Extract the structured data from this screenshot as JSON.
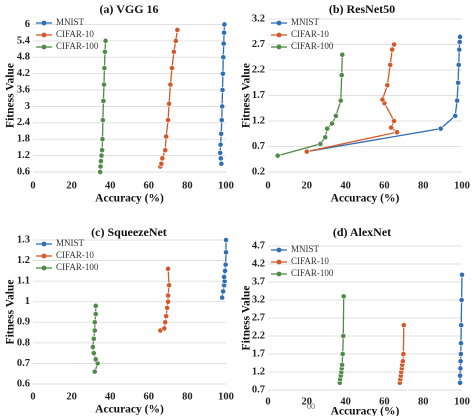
{
  "chart_data": [
    {
      "type": "line",
      "panel_label": "(a) VGG 16",
      "xlabel": "Accuracy (%)",
      "ylabel": "Fitness Value",
      "xlim": [
        0,
        100
      ],
      "ylim": [
        0.6,
        6.2
      ],
      "xticks": [
        0,
        20,
        40,
        60,
        80,
        100
      ],
      "xtick_labels": [
        "0",
        "20",
        "40",
        "60",
        "80",
        "100"
      ],
      "yticks": [
        0.6,
        1.2,
        1.8,
        2.4,
        3.0,
        3.6,
        4.2,
        4.8,
        5.4,
        6.0
      ],
      "ytick_labels": [
        "0.6",
        "1.2",
        "1.8",
        "2.4",
        "3",
        "3.6",
        "4.2",
        "4.8",
        "5.4",
        "6"
      ],
      "grid": "horizontal",
      "legend": "top-left",
      "series": [
        {
          "name": "MNIST",
          "color": "#2f6db5",
          "x": [
            97.6,
            97.3,
            97.0,
            97.2,
            97.5,
            97.8,
            98.0,
            98.2,
            98.4,
            98.6,
            98.8,
            99.0,
            99.2
          ],
          "y": [
            0.9,
            1.1,
            1.3,
            1.6,
            2.0,
            2.5,
            3.0,
            3.6,
            4.2,
            4.8,
            5.3,
            5.7,
            6.0
          ]
        },
        {
          "name": "CIFAR-10",
          "color": "#d4582a",
          "x": [
            66.0,
            66.5,
            67.0,
            68.5,
            69.0,
            70.0,
            70.5,
            71.2,
            72.0,
            73.0,
            74.0,
            74.8
          ],
          "y": [
            0.8,
            0.9,
            1.1,
            1.4,
            1.9,
            2.5,
            3.1,
            3.8,
            4.4,
            5.0,
            5.4,
            5.8
          ]
        },
        {
          "name": "CIFAR-100",
          "color": "#4f8a48",
          "x": [
            34.8,
            35.0,
            35.2,
            35.5,
            35.8,
            36.0,
            36.2,
            36.5,
            36.8,
            37.0,
            37.3,
            37.6
          ],
          "y": [
            0.6,
            0.8,
            1.0,
            1.2,
            1.4,
            1.8,
            2.5,
            3.2,
            3.8,
            4.4,
            5.0,
            5.4
          ]
        }
      ]
    },
    {
      "type": "line",
      "panel_label": "(b) ResNet50",
      "xlabel": "Accuracy (%)",
      "ylabel": "Fitness Value",
      "xlim": [
        0,
        100
      ],
      "ylim": [
        0.2,
        3.2
      ],
      "xticks": [
        0,
        20,
        40,
        60,
        80,
        100
      ],
      "xtick_labels": [
        "0",
        "20",
        "40",
        "60",
        "80",
        "100"
      ],
      "yticks": [
        0.2,
        0.7,
        1.2,
        1.7,
        2.2,
        2.7,
        3.2
      ],
      "ytick_labels": [
        "0.2",
        "0.7",
        "1.2",
        "1.7",
        "2.2",
        "2.7",
        "3.2"
      ],
      "grid": "horizontal",
      "legend": "top-left",
      "series": [
        {
          "name": "MNIST",
          "color": "#2f6db5",
          "x": [
            20.0,
            89.0,
            96.5,
            97.5,
            98.0,
            98.3,
            98.6,
            98.8,
            99.0
          ],
          "y": [
            0.6,
            1.05,
            1.3,
            1.6,
            1.95,
            2.3,
            2.6,
            2.75,
            2.85
          ]
        },
        {
          "name": "CIFAR-10",
          "color": "#d4582a",
          "x": [
            20.0,
            66.5,
            63.5,
            65.0,
            60.0,
            59.0,
            61.5,
            63.0,
            64.0,
            65.0
          ],
          "y": [
            0.6,
            0.98,
            1.07,
            1.2,
            1.55,
            1.62,
            1.9,
            2.3,
            2.6,
            2.7
          ]
        },
        {
          "name": "CIFAR-100",
          "color": "#4f8a48",
          "x": [
            5.0,
            27.0,
            29.5,
            30.5,
            33.0,
            35.0,
            37.5,
            38.0,
            38.3
          ],
          "y": [
            0.52,
            0.75,
            0.88,
            1.05,
            1.15,
            1.3,
            1.6,
            2.1,
            2.5
          ]
        }
      ]
    },
    {
      "type": "line",
      "panel_label": "(c) SqueezeNet",
      "xlabel": "Accuracy (%)",
      "ylabel": "Fitness Value",
      "xlim": [
        0,
        100
      ],
      "ylim": [
        0.6,
        1.3
      ],
      "xticks": [
        0,
        20,
        40,
        60,
        80,
        100
      ],
      "xtick_labels": [
        "0",
        "20",
        "40",
        "60",
        "80",
        "100"
      ],
      "yticks": [
        0.6,
        0.7,
        0.8,
        0.9,
        1.0,
        1.1,
        1.2,
        1.3
      ],
      "ytick_labels": [
        "0.6",
        "0.7",
        "0.8",
        "0.9",
        "1",
        "1.1",
        "1.2",
        "1.3"
      ],
      "grid": "horizontal",
      "legend": "top-left",
      "series": [
        {
          "name": "MNIST",
          "color": "#2f6db5",
          "x": [
            98.0,
            98.5,
            99.0,
            99.3,
            99.0,
            99.5,
            99.8,
            100.0,
            100.0
          ],
          "y": [
            1.02,
            1.05,
            1.08,
            1.1,
            1.12,
            1.15,
            1.18,
            1.24,
            1.3
          ]
        },
        {
          "name": "CIFAR-10",
          "color": "#d4582a",
          "x": [
            66.0,
            68.0,
            68.5,
            69.0,
            69.5,
            70.0,
            70.0,
            70.5,
            70.0
          ],
          "y": [
            0.86,
            0.87,
            0.9,
            0.93,
            0.97,
            1.0,
            1.03,
            1.08,
            1.16
          ]
        },
        {
          "name": "CIFAR-100",
          "color": "#4f8a48",
          "x": [
            32.0,
            33.5,
            32.5,
            31.5,
            31.0,
            31.5,
            32.0,
            32.0,
            32.5,
            32.5
          ],
          "y": [
            0.66,
            0.7,
            0.72,
            0.75,
            0.78,
            0.82,
            0.86,
            0.9,
            0.94,
            0.98
          ]
        }
      ]
    },
    {
      "type": "line",
      "panel_label": "(d) AlexNet",
      "xlabel": "Accuracy (%)",
      "ylabel": "Fitness Value",
      "xlim": [
        0,
        100
      ],
      "ylim": [
        0.7,
        4.7
      ],
      "xticks": [
        0,
        20,
        40,
        60,
        80,
        100
      ],
      "xtick_labels": [
        "0",
        "20",
        "40",
        "60",
        "80",
        "100"
      ],
      "yticks": [
        0.7,
        1.2,
        1.7,
        2.2,
        2.7,
        3.2,
        3.7,
        4.2,
        4.7
      ],
      "ytick_labels": [
        "0.7",
        "1.2",
        "1.7",
        "2.2",
        "2.7",
        "3.2",
        "3.7",
        "4.2",
        "4.7"
      ],
      "grid": "horizontal",
      "legend": "top-left",
      "stray_text": "00",
      "series": [
        {
          "name": "MNIST",
          "color": "#2f6db5",
          "x": [
            99.0,
            99.0,
            99.2,
            99.3,
            99.4,
            99.5,
            99.6,
            99.8,
            100.0
          ],
          "y": [
            0.9,
            1.1,
            1.3,
            1.5,
            1.7,
            2.0,
            2.5,
            3.2,
            3.9
          ]
        },
        {
          "name": "CIFAR-10",
          "color": "#d4582a",
          "x": [
            68.0,
            68.2,
            68.5,
            68.7,
            69.0,
            69.2,
            69.5,
            69.8,
            70.0
          ],
          "y": [
            0.9,
            1.0,
            1.1,
            1.2,
            1.3,
            1.4,
            1.5,
            1.7,
            2.5
          ]
        },
        {
          "name": "CIFAR-100",
          "color": "#4f8a48",
          "x": [
            37.0,
            37.2,
            37.5,
            37.8,
            38.0,
            38.2,
            38.5,
            38.8,
            39.0
          ],
          "y": [
            0.9,
            1.0,
            1.1,
            1.2,
            1.3,
            1.4,
            1.7,
            2.2,
            3.3
          ]
        }
      ]
    }
  ]
}
